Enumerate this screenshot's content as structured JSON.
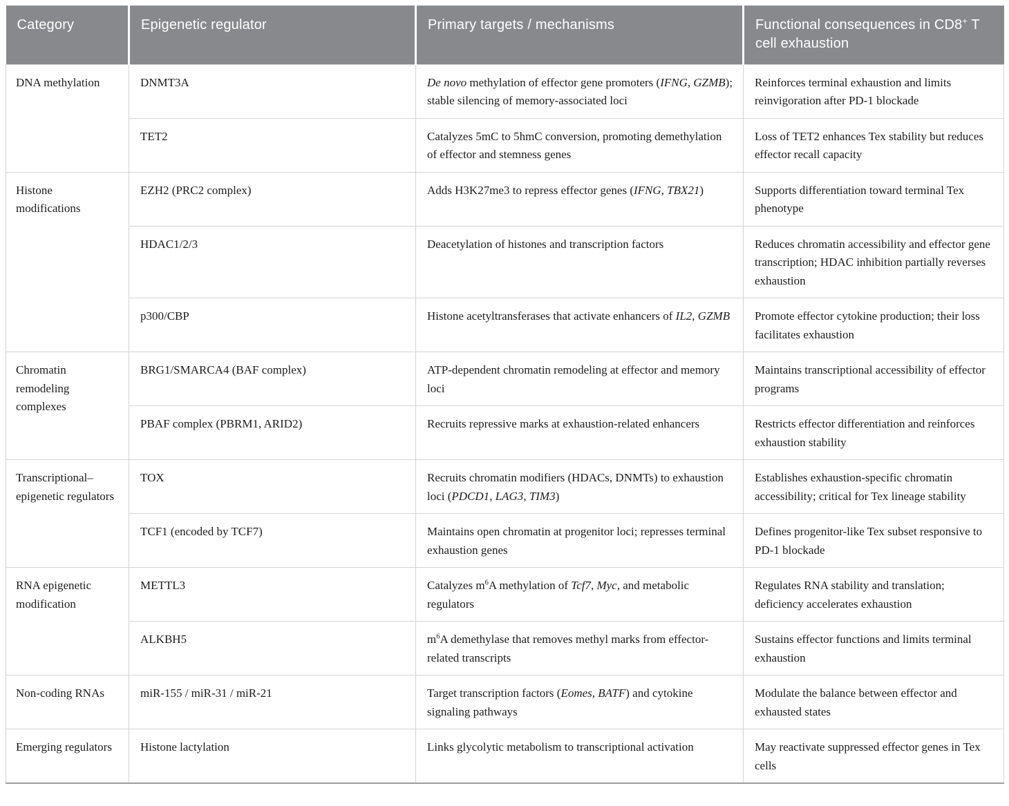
{
  "colors": {
    "header_bg": "#87898c",
    "header_text": "#ffffff",
    "body_text": "#1c1c1c",
    "grid_border": "#d2d3d4",
    "bottom_border": "#9c9d9e"
  },
  "table": {
    "headers": [
      "Category",
      "Epigenetic regulator",
      "Primary targets / mechanisms",
      "Functional consequences in CD8^+^ T cell exhaustion"
    ],
    "groups": [
      {
        "category": "DNA methylation",
        "rows": [
          {
            "regulator": "DNMT3A",
            "mechanism": "*De novo* methylation of effector gene promoters (*IFNG*, *GZMB*); stable silencing of memory-associated loci",
            "consequence": "Reinforces terminal exhaustion and limits reinvigoration after PD-1 blockade"
          },
          {
            "regulator": "TET2",
            "mechanism": "Catalyzes 5mC to 5hmC conversion, promoting demethylation of effector and stemness genes",
            "consequence": "Loss of TET2 enhances Tex stability but reduces effector recall capacity"
          }
        ]
      },
      {
        "category": "Histone modifications",
        "rows": [
          {
            "regulator": "EZH2 (PRC2 complex)",
            "mechanism": "Adds H3K27me3 to repress effector genes (*IFNG*, *TBX21*)",
            "consequence": "Supports differentiation toward terminal Tex phenotype"
          },
          {
            "regulator": "HDAC1/2/3",
            "mechanism": "Deacetylation of histones and transcription factors",
            "consequence": "Reduces chromatin accessibility and effector gene transcription; HDAC inhibition partially reverses exhaustion"
          },
          {
            "regulator": "p300/CBP",
            "mechanism": "Histone acetyltransferases that activate enhancers of *IL2*, *GZMB*",
            "consequence": "Promote effector cytokine production; their loss facilitates exhaustion"
          }
        ]
      },
      {
        "category": "Chromatin remodeling complexes",
        "rows": [
          {
            "regulator": "BRG1/SMARCA4 (BAF complex)",
            "mechanism": "ATP-dependent chromatin remodeling at effector and memory loci",
            "consequence": "Maintains transcriptional accessibility of effector programs"
          },
          {
            "regulator": "PBAF complex (PBRM1, ARID2)",
            "mechanism": "Recruits repressive marks at exhaustion-related enhancers",
            "consequence": "Restricts effector differentiation and reinforces exhaustion stability"
          }
        ]
      },
      {
        "category": "Transcriptional–epigenetic regulators",
        "rows": [
          {
            "regulator": "TOX",
            "mechanism": "Recruits chromatin modifiers (HDACs, DNMTs) to exhaustion loci (*PDCD1*, *LAG3*, *TIM3*)",
            "consequence": "Establishes exhaustion-specific chromatin accessibility; critical for Tex lineage stability"
          },
          {
            "regulator": "TCF1 (encoded by TCF7)",
            "mechanism": "Maintains open chromatin at progenitor loci; represses terminal exhaustion genes",
            "consequence": "Defines progenitor-like Tex subset responsive to PD-1 blockade"
          }
        ]
      },
      {
        "category": "RNA epigenetic modification",
        "rows": [
          {
            "regulator": "METTL3",
            "mechanism": "Catalyzes m^6^A methylation of *Tcf7*, *Myc*, and metabolic regulators",
            "consequence": "Regulates RNA stability and translation; deficiency accelerates exhaustion"
          },
          {
            "regulator": "ALKBH5",
            "mechanism": "m^6^A demethylase that removes methyl marks from effector-related transcripts",
            "consequence": "Sustains effector functions and limits terminal exhaustion"
          }
        ]
      },
      {
        "category": "Non-coding RNAs",
        "rows": [
          {
            "regulator": "miR-155 / miR-31 / miR-21",
            "mechanism": "Target transcription factors (*Eomes*, *BATF*) and cytokine signaling pathways",
            "consequence": "Modulate the balance between effector and exhausted states"
          }
        ]
      },
      {
        "category": "Emerging regulators",
        "rows": [
          {
            "regulator": "Histone lactylation",
            "mechanism": "Links glycolytic metabolism to transcriptional activation",
            "consequence": "May reactivate suppressed effector genes in Tex cells"
          }
        ]
      }
    ]
  }
}
